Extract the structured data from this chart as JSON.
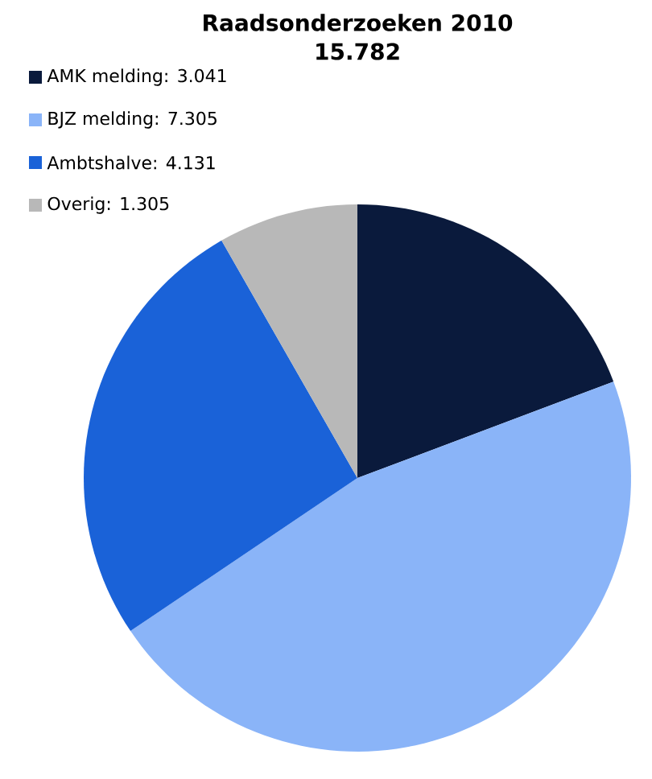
{
  "chart_data": {
    "type": "pie",
    "title": "Raadsonderzoeken 2010",
    "subtitle": "15.782",
    "categories": [
      "AMK melding: 3.041",
      "BJZ melding: 7.305",
      "Ambtshalve: 4.131",
      "Overig: 1.305"
    ],
    "values": [
      3041,
      7305,
      4131,
      1305
    ],
    "colors": [
      "#0a1a3c",
      "#8ab4f8",
      "#1a62d8",
      "#b8b8b8"
    ],
    "legend": "top left"
  }
}
